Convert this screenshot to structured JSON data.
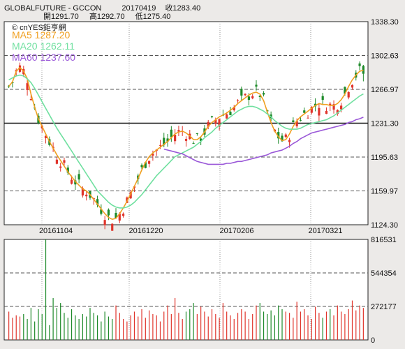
{
  "header": {
    "symbol": "GLOBALFUTURE - GCCON",
    "date": "20170419",
    "close_label": "收1283.40",
    "open_label": "開1291.70",
    "high_label": "高1292.70",
    "low_label": "低1275.40"
  },
  "legend": {
    "source": "© cnYES鉅亨網",
    "ma5": "MA5 1287.20",
    "ma20": "MA20 1262.11",
    "ma60": "MA60 1237.60"
  },
  "colors": {
    "up": "#e0342b",
    "down": "#1e8a2a",
    "ma5": "#f0a020",
    "ma20": "#70e0a0",
    "ma60": "#9a58d8",
    "background": "#eceae8",
    "plot_background": "#ffffff"
  },
  "chart_data": [
    {
      "type": "candlestick",
      "x_tick_labels": [
        "20161104",
        "20161220",
        "20170206",
        "20170321"
      ],
      "y_tick_labels": [
        "1338.30",
        "1302.63",
        "1266.97",
        "1231.30",
        "1195.63",
        "1159.97",
        "1124.30"
      ],
      "ylim": [
        1124.3,
        1338.3
      ],
      "reference_line": 1231.3,
      "grid": true,
      "legend_position": "top-left",
      "last_bar": {
        "date": "20170419",
        "open": 1291.7,
        "high": 1292.7,
        "low": 1275.4,
        "close": 1283.4
      },
      "series": [
        {
          "name": "MA5",
          "last": 1287.2,
          "values": [
            1270,
            1275,
            1286,
            1290,
            1286,
            1278,
            1262,
            1248,
            1236,
            1228,
            1220,
            1212,
            1205,
            1198,
            1192,
            1186,
            1180,
            1175,
            1170,
            1166,
            1162,
            1160,
            1156,
            1151,
            1146,
            1141,
            1136,
            1132,
            1130,
            1131,
            1136,
            1142,
            1149,
            1157,
            1165,
            1173,
            1182,
            1190,
            1196,
            1200,
            1203,
            1206,
            1209,
            1212,
            1216,
            1220,
            1222,
            1223,
            1221,
            1218,
            1214,
            1214,
            1217,
            1222,
            1228,
            1232,
            1235,
            1238,
            1240,
            1242,
            1245,
            1248,
            1252,
            1255,
            1258,
            1261,
            1263,
            1264,
            1262,
            1255,
            1243,
            1232,
            1223,
            1217,
            1213,
            1214,
            1220,
            1228,
            1234,
            1238,
            1241,
            1244,
            1247,
            1250,
            1252,
            1251,
            1251,
            1250,
            1250,
            1252,
            1256,
            1262,
            1270,
            1277,
            1282,
            1286,
            1287.2
          ]
        },
        {
          "name": "MA20",
          "last": 1262.11,
          "values": [
            1277,
            1279,
            1281,
            1282,
            1281,
            1278,
            1274,
            1268,
            1261,
            1254,
            1247,
            1240,
            1233,
            1226,
            1220,
            1214,
            1208,
            1202,
            1196,
            1190,
            1184,
            1178,
            1172,
            1166,
            1160,
            1156,
            1152,
            1148,
            1145,
            1143,
            1142,
            1142,
            1143,
            1145,
            1148,
            1152,
            1156,
            1161,
            1166,
            1171,
            1176,
            1180,
            1184,
            1188,
            1192,
            1196,
            1198,
            1200,
            1202,
            1204,
            1206,
            1209,
            1212,
            1216,
            1219,
            1222,
            1226,
            1229,
            1232,
            1235,
            1238,
            1241,
            1244,
            1246,
            1248,
            1249,
            1249,
            1248,
            1246,
            1244,
            1241,
            1238,
            1234,
            1231,
            1228,
            1226,
            1225,
            1225,
            1225,
            1226,
            1228,
            1230,
            1231,
            1232,
            1233,
            1234,
            1235,
            1237,
            1239,
            1242,
            1245,
            1248,
            1251,
            1254,
            1257,
            1260,
            1262.11
          ]
        },
        {
          "name": "MA60",
          "last": 1237.6,
          "values": [
            null,
            null,
            null,
            null,
            null,
            null,
            null,
            null,
            null,
            null,
            null,
            null,
            null,
            null,
            null,
            null,
            null,
            null,
            null,
            null,
            null,
            null,
            null,
            null,
            null,
            null,
            null,
            null,
            null,
            null,
            null,
            null,
            null,
            null,
            null,
            null,
            null,
            null,
            null,
            null,
            null,
            null,
            1204,
            1203,
            1202,
            1201,
            1200,
            1199,
            1197,
            1195,
            1193,
            1191,
            1190,
            1189,
            1188,
            1188,
            1188,
            1188,
            1188,
            1189,
            1189,
            1190,
            1191,
            1191,
            1192,
            1193,
            1194,
            1195,
            1196,
            1197,
            1198,
            1200,
            1201,
            1202,
            1203,
            1205,
            1207,
            1210,
            1212,
            1215,
            1217,
            1219,
            1221,
            1222,
            1223,
            1224,
            1225,
            1226,
            1227,
            1228,
            1229,
            1230,
            1232,
            1233,
            1235,
            1236,
            1237.6
          ]
        }
      ]
    },
    {
      "type": "bar",
      "series_name": "Volume",
      "y_tick_labels": [
        "816531",
        "544354",
        "272177",
        "0"
      ],
      "ylim": [
        0,
        816531
      ],
      "grid": true,
      "values": [
        230000,
        180000,
        200000,
        190000,
        210000,
        170000,
        260000,
        150000,
        250000,
        210000,
        816531,
        120000,
        340000,
        260000,
        300000,
        220000,
        180000,
        250000,
        200000,
        170000,
        210000,
        190000,
        260000,
        220000,
        200000,
        150000,
        230000,
        190000,
        170000,
        280000,
        220000,
        170000,
        150000,
        200000,
        230000,
        190000,
        250000,
        180000,
        240000,
        210000,
        200000,
        150000,
        230000,
        280000,
        210000,
        340000,
        220000,
        170000,
        230000,
        250000,
        300000,
        210000,
        270000,
        230000,
        190000,
        250000,
        210000,
        180000,
        300000,
        230000,
        200000,
        170000,
        220000,
        250000,
        230000,
        170000,
        210000,
        280000,
        300000,
        230000,
        210000,
        240000,
        200000,
        280000,
        250000,
        230000,
        220000,
        180000,
        310000,
        230000,
        250000,
        200000,
        170000,
        270000,
        220000,
        180000,
        230000,
        250000,
        200000,
        280000,
        230000,
        210000,
        250000,
        320000,
        240000,
        280000,
        260000
      ]
    }
  ]
}
